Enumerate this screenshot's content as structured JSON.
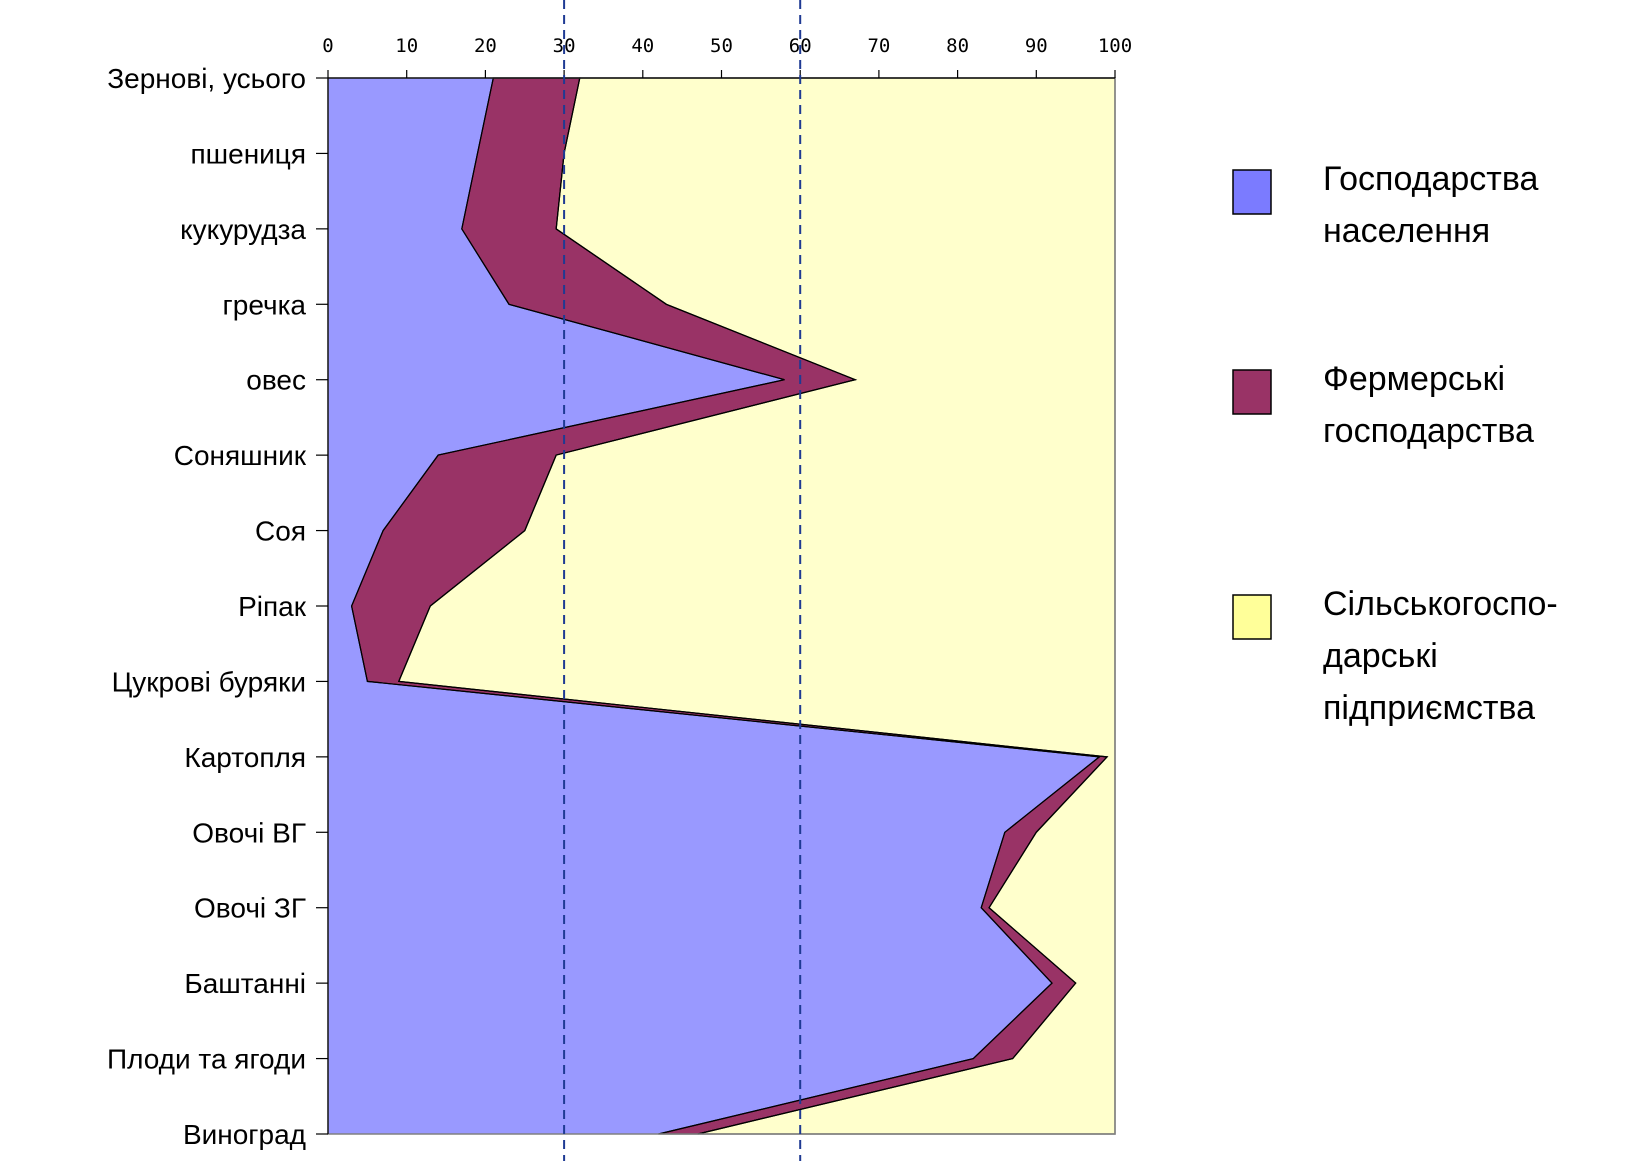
{
  "chart_data": {
    "type": "area",
    "orientation": "horizontal",
    "stacked": true,
    "categories": [
      "Зернові, усього",
      "пшениця",
      "кукурудза",
      "гречка",
      "овес",
      "Соняшник",
      "Соя",
      "Ріпак",
      "Цукрові буряки",
      "Картопля",
      "Овочі ВГ",
      "Овочі ЗГ",
      "Баштанні",
      "Плоди та ягоди",
      "Виноград"
    ],
    "xlim": [
      0,
      100
    ],
    "x_ticks": [
      "0",
      "10",
      "20",
      "30",
      "40",
      "50",
      "60",
      "70",
      "80",
      "90",
      "100"
    ],
    "reference_lines": [
      30,
      60
    ],
    "grid": false,
    "legend_position": "right",
    "series": [
      {
        "name": "Господарства населення",
        "color": "#9999ff",
        "values": [
          21,
          19,
          17,
          23,
          58,
          14,
          7,
          3,
          5,
          98,
          86,
          83,
          92,
          82,
          42
        ]
      },
      {
        "name": "Фермерські господарства",
        "color": "#993366",
        "values": [
          11,
          11,
          12,
          20,
          9,
          15,
          18,
          10,
          4,
          1,
          4,
          1,
          3,
          5,
          5
        ]
      },
      {
        "name": "Сільськогосподарські підприємства",
        "color": "#ffffcc",
        "values": [
          68,
          70,
          71,
          57,
          33,
          71,
          75,
          87,
          91,
          1,
          10,
          16,
          5,
          13,
          53
        ]
      }
    ]
  },
  "legend": [
    {
      "lines": [
        "Господарства",
        "населення"
      ],
      "color": "#7b7bff"
    },
    {
      "lines": [
        "Фермерські",
        "господарства"
      ],
      "color": "#993366"
    },
    {
      "lines": [
        "Сільськогоспо-",
        "дарські",
        "підприємства"
      ],
      "color": "#ffff99"
    }
  ]
}
